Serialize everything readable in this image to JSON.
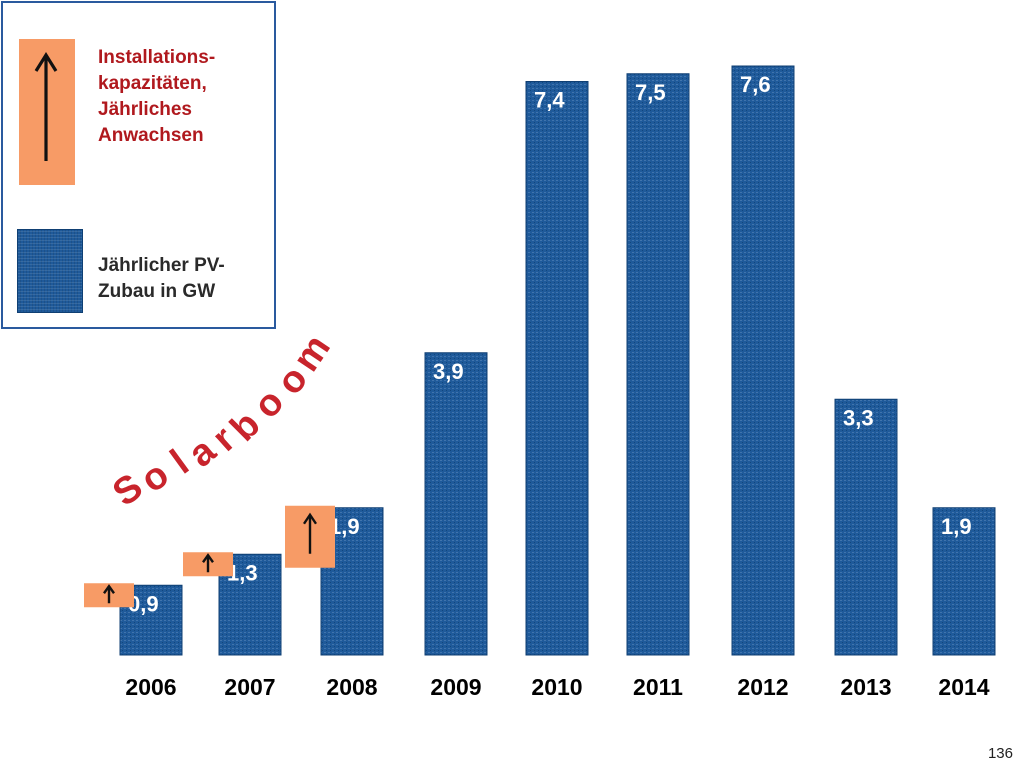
{
  "legend": {
    "arrow_label": "Installations-\nkapazitäten,\nJährliches\nAnwachsen",
    "bar_label": "Jährlicher PV-\nZubau in GW"
  },
  "annotation": "Solarboom",
  "page_number": "136",
  "colors": {
    "bar": "#1f5a9a",
    "arrow_box": "#f79b66",
    "accent_text": "#b0191e",
    "legend_border": "#2a5a9e"
  },
  "chart_data": {
    "type": "bar",
    "categories": [
      "2006",
      "2007",
      "2008",
      "2009",
      "2010",
      "2011",
      "2012",
      "2013",
      "2014"
    ],
    "values": [
      0.9,
      1.3,
      1.9,
      3.9,
      7.4,
      7.5,
      7.6,
      3.3,
      1.9
    ],
    "value_labels": [
      "0,9",
      "1,3",
      "1,9",
      "3,9",
      "7,4",
      "7,5",
      "7,6",
      "3,3",
      "1,9"
    ],
    "growth_arrows": [
      {
        "category": "2006",
        "size": "small"
      },
      {
        "category": "2007",
        "size": "small"
      },
      {
        "category": "2008",
        "size": "large"
      }
    ],
    "ylim": [
      0,
      8
    ]
  }
}
